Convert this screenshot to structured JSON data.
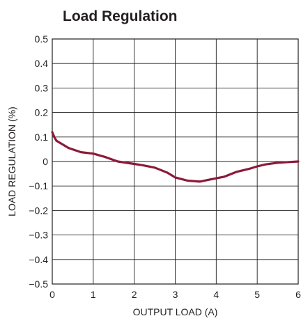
{
  "chart_data": {
    "type": "line",
    "title": "Load Regulation",
    "xlabel": "OUTPUT LOAD (A)",
    "ylabel": "LOAD REGULATION (%)",
    "xlim": [
      0,
      6
    ],
    "ylim": [
      -0.5,
      0.5
    ],
    "x_ticks": [
      "0",
      "1",
      "2",
      "3",
      "4",
      "5",
      "6"
    ],
    "y_ticks": [
      "0.5",
      "0.4",
      "0.3",
      "0.2",
      "0.1",
      "0",
      "−0.1",
      "−0.2",
      "−0.3",
      "−0.4",
      "−0.5"
    ],
    "grid": true,
    "series": [
      {
        "color": "#8b1a3a",
        "x": [
          0,
          0.05,
          0.1,
          0.4,
          0.7,
          1.0,
          1.3,
          1.6,
          2.0,
          2.2,
          2.5,
          2.8,
          3.0,
          3.3,
          3.6,
          3.8,
          4.2,
          4.5,
          4.8,
          5.0,
          5.2,
          5.5,
          5.8,
          6.0
        ],
        "y": [
          0.12,
          0.1,
          0.085,
          0.055,
          0.038,
          0.032,
          0.018,
          0.0,
          -0.01,
          -0.015,
          -0.025,
          -0.045,
          -0.065,
          -0.078,
          -0.082,
          -0.075,
          -0.062,
          -0.042,
          -0.03,
          -0.02,
          -0.012,
          -0.005,
          -0.002,
          0.0
        ]
      }
    ]
  }
}
